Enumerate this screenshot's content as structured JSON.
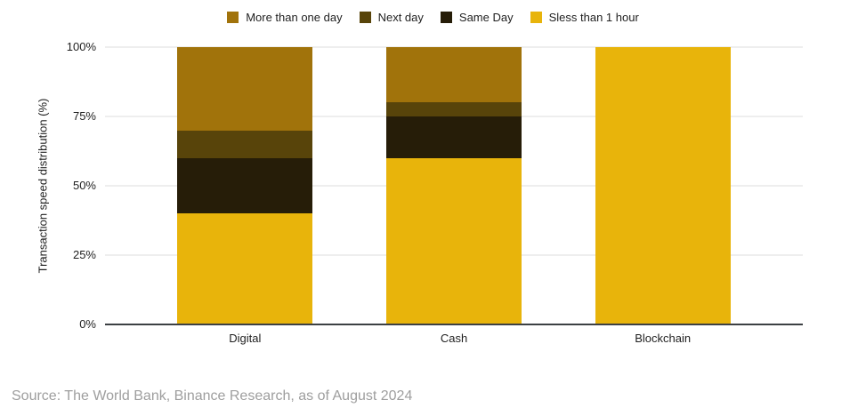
{
  "chart_data": {
    "type": "bar",
    "stacked": true,
    "categories": [
      "Digital",
      "Cash",
      "Blockchain"
    ],
    "series": [
      {
        "name": "Sless than 1 hour",
        "color": "#E8B40B",
        "values": [
          40,
          60,
          100
        ]
      },
      {
        "name": "Same Day",
        "color": "#261D08",
        "values": [
          20,
          15,
          0
        ]
      },
      {
        "name": "Next day",
        "color": "#58440A",
        "values": [
          10,
          5,
          0
        ]
      },
      {
        "name": "More than one day",
        "color": "#A1730B",
        "values": [
          30,
          20,
          0
        ]
      }
    ],
    "legend_order": [
      "More than one day",
      "Next day",
      "Same Day",
      "Sless than 1 hour"
    ],
    "legend_position": "top",
    "xlabel": "",
    "ylabel": "Transaction speed distribution (%)",
    "ylim": [
      0,
      100
    ],
    "grid": true,
    "yticks": [
      {
        "value": 0,
        "label": "0%"
      },
      {
        "value": 25,
        "label": "25%"
      },
      {
        "value": 50,
        "label": "50%"
      },
      {
        "value": 75,
        "label": "75%"
      },
      {
        "value": 100,
        "label": "100%"
      }
    ]
  },
  "source": {
    "text": "Source: The World Bank, Binance Research, as of August 2024"
  },
  "colors": {
    "background": "#FFFFFF",
    "grid": "#DCDCDC",
    "axis": "#3C4043",
    "chart_text": "#1F1F1F",
    "source_text": "#9E9E9E"
  }
}
